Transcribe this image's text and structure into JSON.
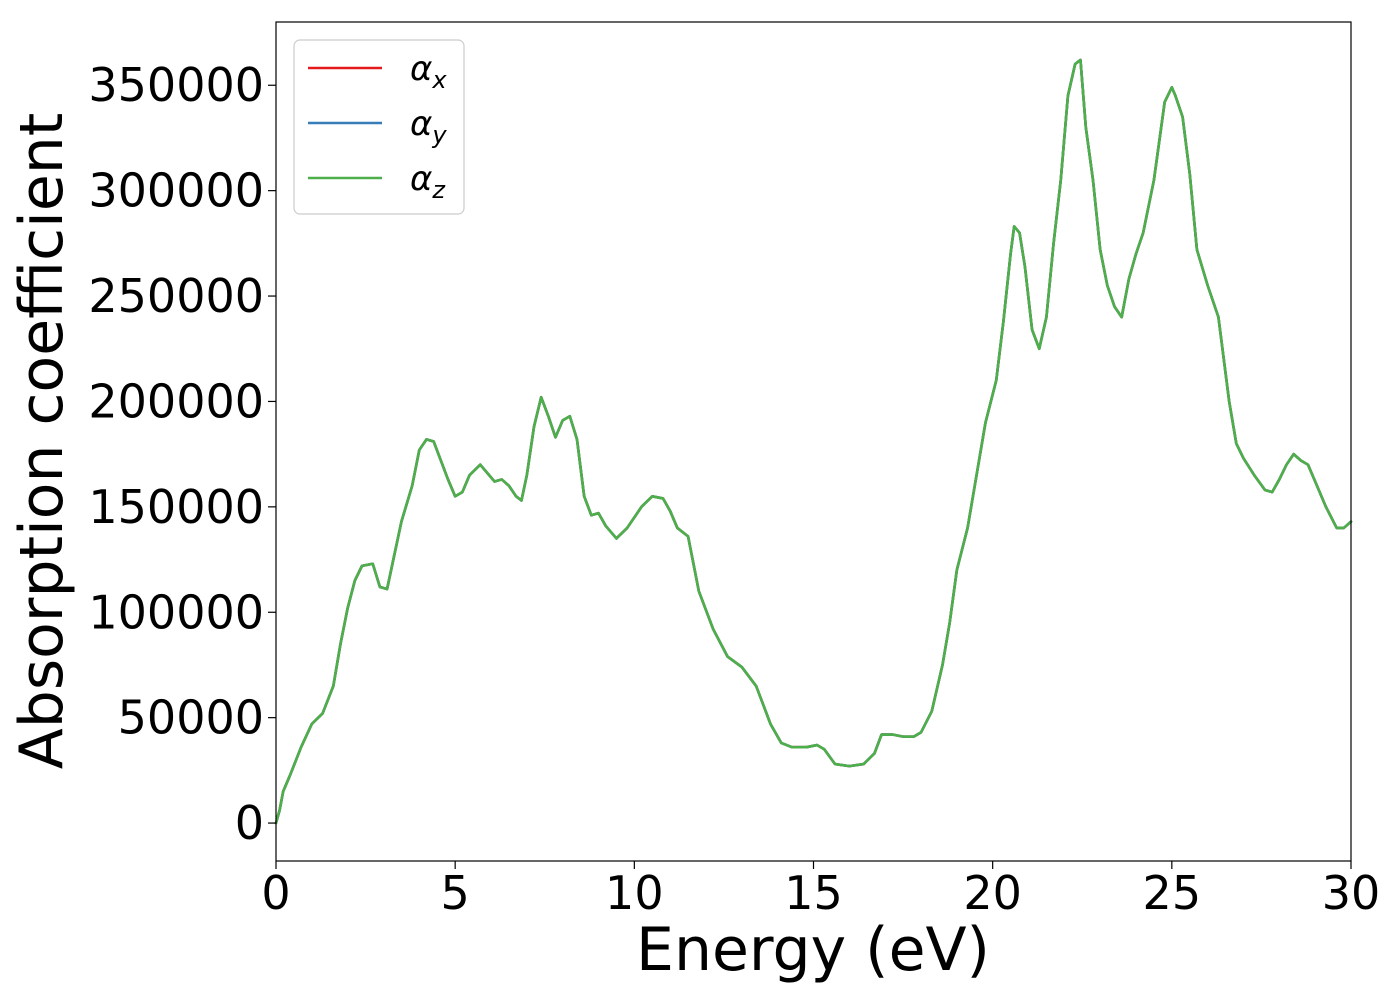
{
  "chart_data": {
    "type": "line",
    "title": "",
    "xlabel": "Energy (eV)",
    "ylabel": "Absorption coefficient",
    "xlim": [
      0,
      30
    ],
    "ylim": [
      -18000,
      380000
    ],
    "xticks": [
      0,
      5,
      10,
      15,
      20,
      25,
      30
    ],
    "xtick_labels": [
      "0",
      "5",
      "10",
      "15",
      "20",
      "25",
      "30"
    ],
    "yticks": [
      0,
      50000,
      100000,
      150000,
      200000,
      250000,
      300000,
      350000
    ],
    "ytick_labels": [
      "0",
      "50000",
      "100000",
      "150000",
      "200000",
      "250000",
      "300000",
      "350000"
    ],
    "grid": false,
    "legend_position": "top-left",
    "x": [
      0,
      0.1,
      0.2,
      0.4,
      0.7,
      1.0,
      1.3,
      1.6,
      1.8,
      2.0,
      2.2,
      2.4,
      2.7,
      2.9,
      3.1,
      3.3,
      3.5,
      3.8,
      4.0,
      4.2,
      4.4,
      4.6,
      4.8,
      5.0,
      5.2,
      5.4,
      5.7,
      5.9,
      6.1,
      6.3,
      6.5,
      6.7,
      6.85,
      7.0,
      7.2,
      7.4,
      7.6,
      7.8,
      8.0,
      8.2,
      8.4,
      8.6,
      8.8,
      9.0,
      9.2,
      9.5,
      9.8,
      10.2,
      10.5,
      10.8,
      11.0,
      11.2,
      11.5,
      11.8,
      12.2,
      12.6,
      13.0,
      13.4,
      13.8,
      14.1,
      14.4,
      14.8,
      15.1,
      15.3,
      15.6,
      16.0,
      16.4,
      16.7,
      16.9,
      17.2,
      17.5,
      17.8,
      18.0,
      18.3,
      18.6,
      18.8,
      19.0,
      19.3,
      19.6,
      19.8,
      20.1,
      20.3,
      20.5,
      20.6,
      20.75,
      20.9,
      21.1,
      21.3,
      21.5,
      21.7,
      21.9,
      22.1,
      22.3,
      22.45,
      22.6,
      22.8,
      23.0,
      23.2,
      23.4,
      23.6,
      23.8,
      24.0,
      24.2,
      24.5,
      24.8,
      25.0,
      25.1,
      25.3,
      25.5,
      25.7,
      26.0,
      26.3,
      26.6,
      26.8,
      27.0,
      27.3,
      27.6,
      27.8,
      28.0,
      28.2,
      28.4,
      28.6,
      28.8,
      29.0,
      29.3,
      29.6,
      29.8,
      30.0
    ],
    "series": [
      {
        "name": "αx",
        "color": "#e41a1c",
        "y": [
          0,
          6000,
          15000,
          23000,
          36000,
          47000,
          52000,
          65000,
          85000,
          102000,
          115000,
          122000,
          123000,
          112000,
          111000,
          127000,
          143000,
          160000,
          177000,
          182000,
          181000,
          172000,
          163000,
          155000,
          157000,
          165000,
          170000,
          166000,
          162000,
          163000,
          160000,
          155000,
          153000,
          165000,
          188000,
          202000,
          193000,
          183000,
          191000,
          193000,
          182000,
          155000,
          146000,
          147000,
          141000,
          135000,
          140000,
          150000,
          155000,
          154000,
          148000,
          140000,
          136000,
          110000,
          92000,
          79000,
          74000,
          65000,
          47000,
          38000,
          36000,
          36000,
          37000,
          35000,
          28000,
          27000,
          28000,
          33000,
          42000,
          42000,
          41000,
          41000,
          43000,
          53000,
          75000,
          95000,
          120000,
          140000,
          170000,
          190000,
          210000,
          238000,
          270000,
          283000,
          280000,
          264000,
          234000,
          225000,
          240000,
          275000,
          305000,
          345000,
          360000,
          362000,
          330000,
          305000,
          272000,
          255000,
          245000,
          240000,
          258000,
          270000,
          280000,
          305000,
          342000,
          349000,
          345000,
          335000,
          308000,
          272000,
          255000,
          240000,
          200000,
          180000,
          173000,
          165000,
          158000,
          157000,
          163000,
          170000,
          175000,
          172000,
          170000,
          162000,
          150000,
          140000,
          140000,
          143000
        ]
      },
      {
        "name": "αy",
        "color": "#377eb8",
        "y": [
          0,
          6000,
          15000,
          23000,
          36000,
          47000,
          52000,
          65000,
          85000,
          102000,
          115000,
          122000,
          123000,
          112000,
          111000,
          127000,
          143000,
          160000,
          177000,
          182000,
          181000,
          172000,
          163000,
          155000,
          157000,
          165000,
          170000,
          166000,
          162000,
          163000,
          160000,
          155000,
          153000,
          165000,
          188000,
          202000,
          193000,
          183000,
          191000,
          193000,
          182000,
          155000,
          146000,
          147000,
          141000,
          135000,
          140000,
          150000,
          155000,
          154000,
          148000,
          140000,
          136000,
          110000,
          92000,
          79000,
          74000,
          65000,
          47000,
          38000,
          36000,
          36000,
          37000,
          35000,
          28000,
          27000,
          28000,
          33000,
          42000,
          42000,
          41000,
          41000,
          43000,
          53000,
          75000,
          95000,
          120000,
          140000,
          170000,
          190000,
          210000,
          238000,
          270000,
          283000,
          280000,
          264000,
          234000,
          225000,
          240000,
          275000,
          305000,
          345000,
          360000,
          362000,
          330000,
          305000,
          272000,
          255000,
          245000,
          240000,
          258000,
          270000,
          280000,
          305000,
          342000,
          349000,
          345000,
          335000,
          308000,
          272000,
          255000,
          240000,
          200000,
          180000,
          173000,
          165000,
          158000,
          157000,
          163000,
          170000,
          175000,
          172000,
          170000,
          162000,
          150000,
          140000,
          140000,
          143000
        ]
      },
      {
        "name": "αz",
        "color": "#4daf4a",
        "y": [
          0,
          6000,
          15000,
          23000,
          36000,
          47000,
          52000,
          65000,
          85000,
          102000,
          115000,
          122000,
          123000,
          112000,
          111000,
          127000,
          143000,
          160000,
          177000,
          182000,
          181000,
          172000,
          163000,
          155000,
          157000,
          165000,
          170000,
          166000,
          162000,
          163000,
          160000,
          155000,
          153000,
          165000,
          188000,
          202000,
          193000,
          183000,
          191000,
          193000,
          182000,
          155000,
          146000,
          147000,
          141000,
          135000,
          140000,
          150000,
          155000,
          154000,
          148000,
          140000,
          136000,
          110000,
          92000,
          79000,
          74000,
          65000,
          47000,
          38000,
          36000,
          36000,
          37000,
          35000,
          28000,
          27000,
          28000,
          33000,
          42000,
          42000,
          41000,
          41000,
          43000,
          53000,
          75000,
          95000,
          120000,
          140000,
          170000,
          190000,
          210000,
          238000,
          270000,
          283000,
          280000,
          264000,
          234000,
          225000,
          240000,
          275000,
          305000,
          345000,
          360000,
          362000,
          330000,
          305000,
          272000,
          255000,
          245000,
          240000,
          258000,
          270000,
          280000,
          305000,
          342000,
          349000,
          345000,
          335000,
          308000,
          272000,
          255000,
          240000,
          200000,
          180000,
          173000,
          165000,
          158000,
          157000,
          163000,
          170000,
          175000,
          172000,
          170000,
          162000,
          150000,
          140000,
          140000,
          143000
        ]
      }
    ],
    "legend": [
      {
        "symbol": "α",
        "subscript": "x"
      },
      {
        "symbol": "α",
        "subscript": "y"
      },
      {
        "symbol": "α",
        "subscript": "z"
      }
    ]
  }
}
